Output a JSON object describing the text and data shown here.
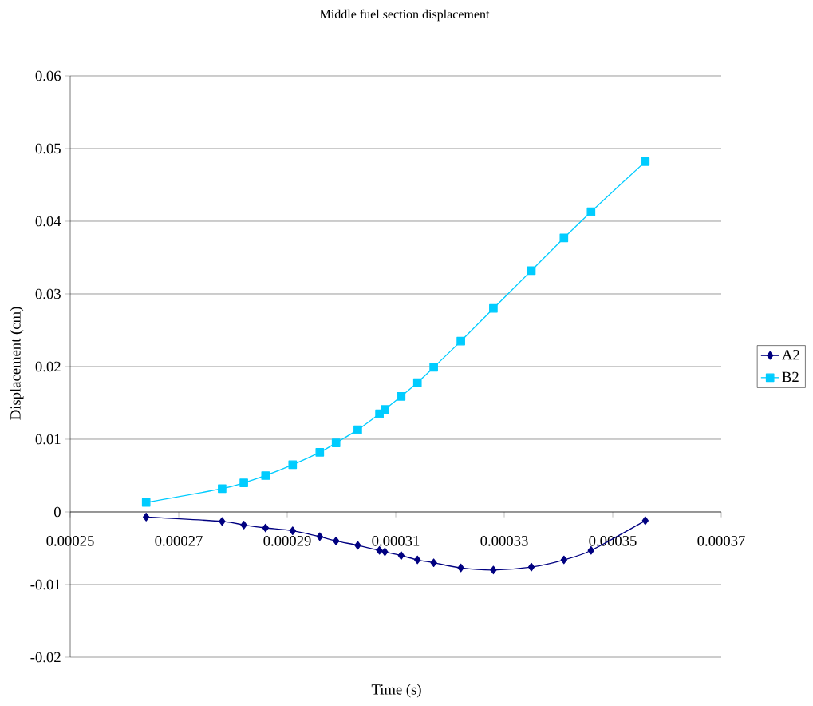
{
  "chart_data": {
    "type": "line",
    "title": "Middle fuel section displacement",
    "xlabel": "Time (s)",
    "ylabel": "Displacement (cm)",
    "x": [
      0.000264,
      0.000278,
      0.000282,
      0.000286,
      0.000291,
      0.000296,
      0.000299,
      0.000303,
      0.000307,
      0.000308,
      0.000311,
      0.000314,
      0.000317,
      0.000322,
      0.000328,
      0.000335,
      0.000341,
      0.000346,
      0.000356
    ],
    "series": [
      {
        "name": "A2",
        "color": "#000080",
        "marker": "diamond",
        "values": [
          -0.0007,
          -0.0013,
          -0.0018,
          -0.0022,
          -0.0026,
          -0.0034,
          -0.004,
          -0.0046,
          -0.0053,
          -0.0055,
          -0.006,
          -0.0066,
          -0.007,
          -0.0077,
          -0.008,
          -0.0076,
          -0.0066,
          -0.0053,
          -0.0012
        ]
      },
      {
        "name": "B2",
        "color": "#00ccff",
        "marker": "square",
        "values": [
          0.0013,
          0.0032,
          0.004,
          0.005,
          0.0065,
          0.0082,
          0.0095,
          0.0113,
          0.0135,
          0.0141,
          0.0159,
          0.0178,
          0.0199,
          0.0235,
          0.028,
          0.0332,
          0.0377,
          0.0413,
          0.0482
        ]
      }
    ],
    "xlim": [
      0.00025,
      0.00037
    ],
    "xticks": [
      0.00025,
      0.00027,
      0.00029,
      0.00031,
      0.00033,
      0.00035,
      0.00037
    ],
    "ylim": [
      -0.02,
      0.06
    ],
    "yticks": [
      -0.02,
      -0.01,
      0,
      0.01,
      0.02,
      0.03,
      0.04,
      0.05,
      0.06
    ],
    "grid": "y",
    "legend": "right",
    "line_style": "solid"
  }
}
